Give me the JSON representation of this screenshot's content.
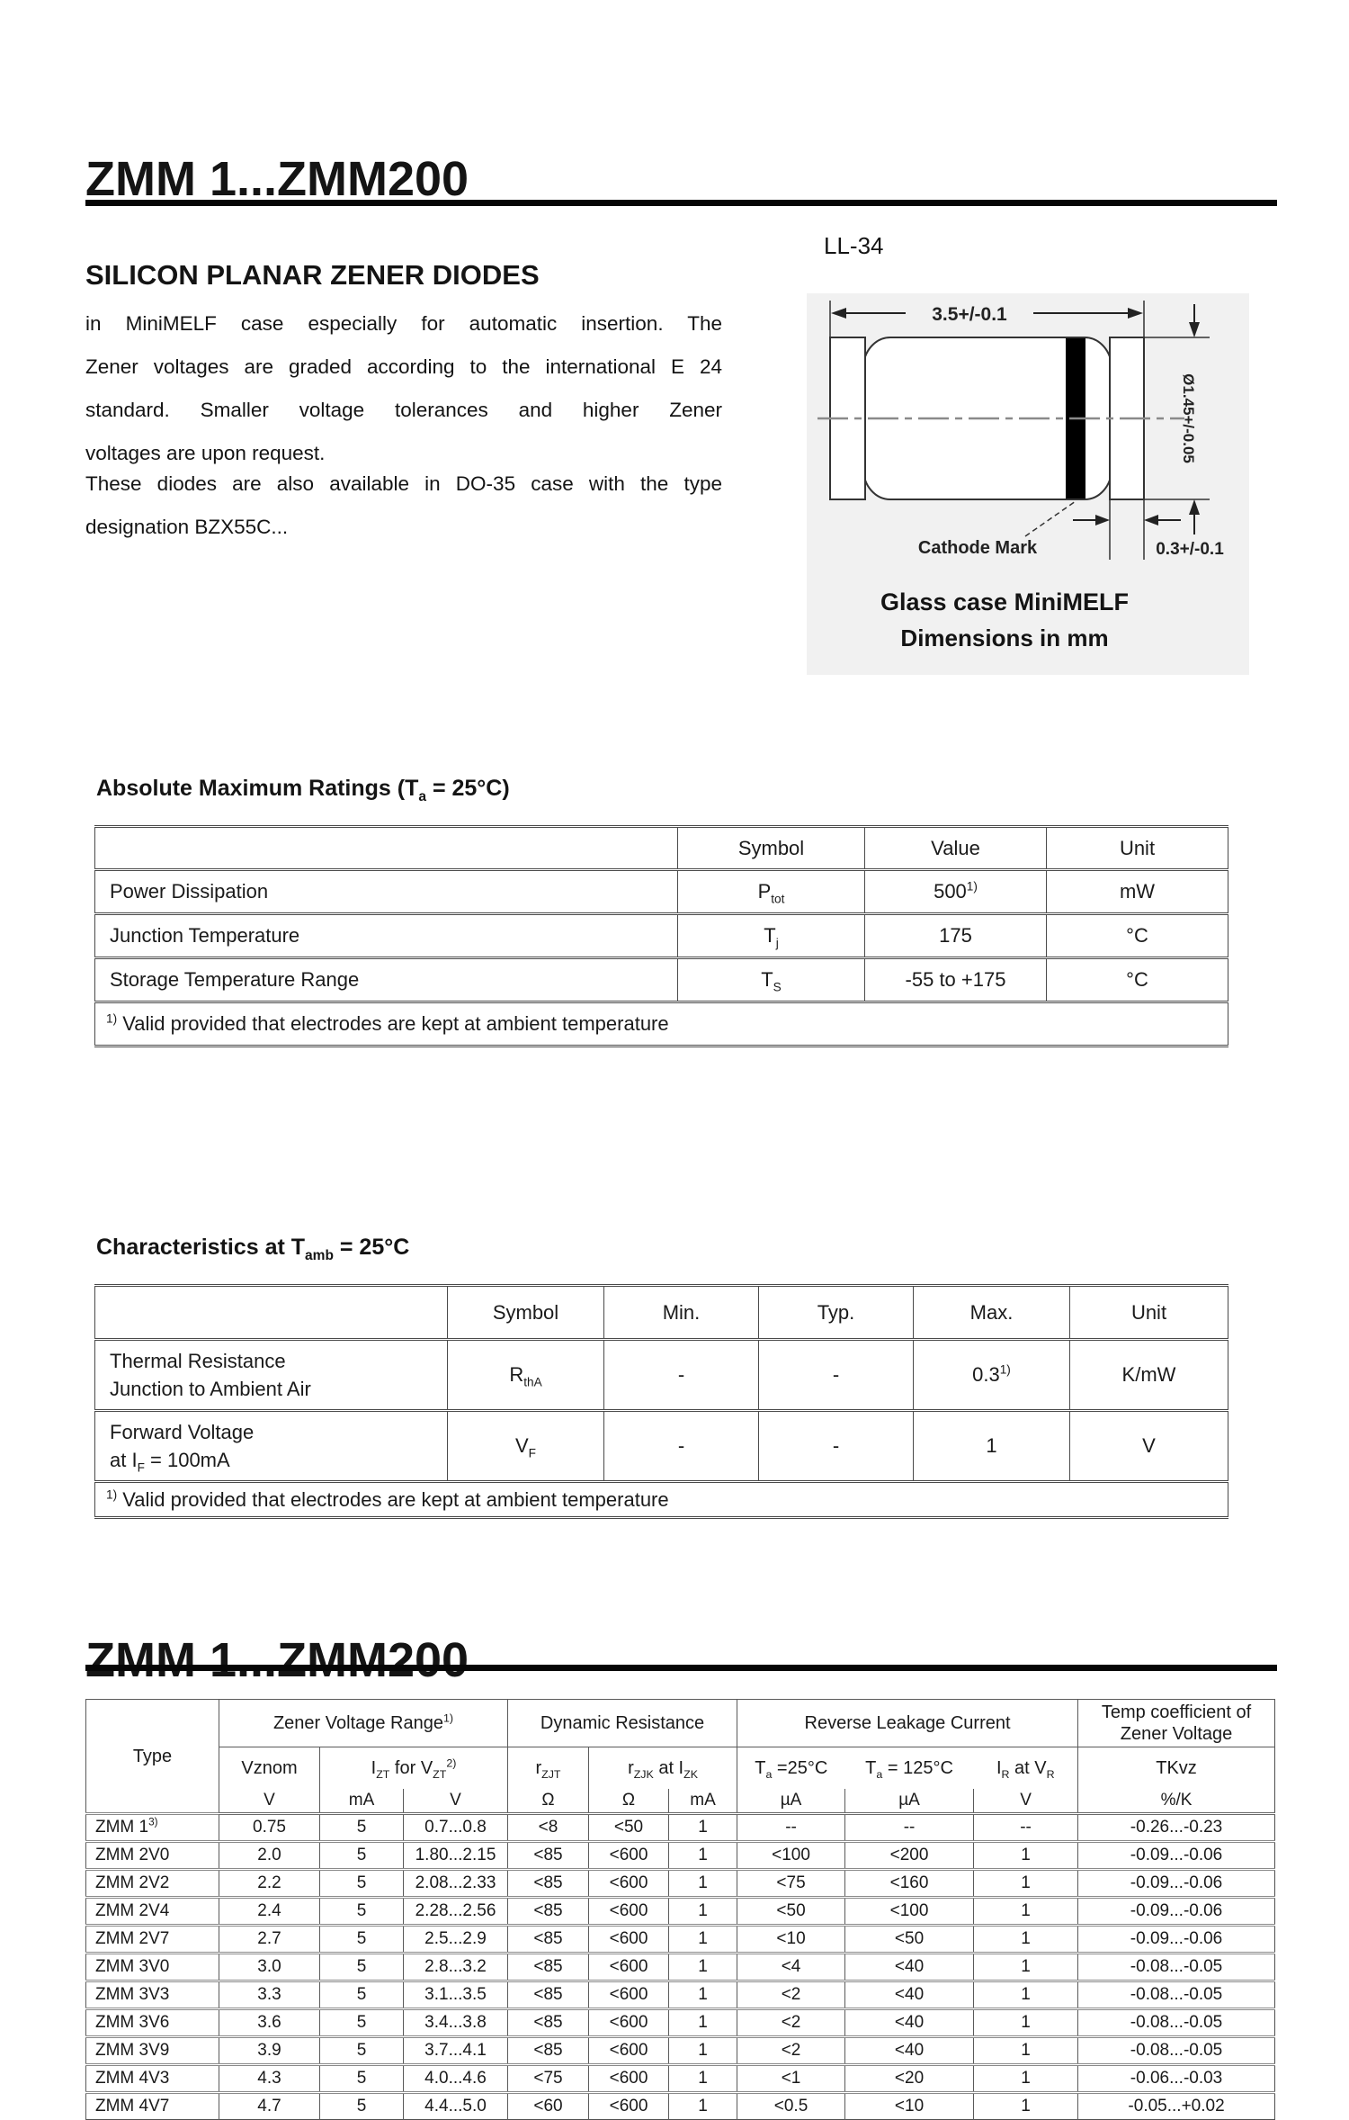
{
  "header": {
    "title": "ZMM 1...ZMM200",
    "subtitle": "SILICON PLANAR ZENER DIODES"
  },
  "intro": {
    "p1_lines": [
      "in MiniMELF case especially for automatic insertion. The",
      "Zener voltages are graded according to the international E 24",
      "standard. Smaller voltage tolerances and higher Zener",
      "voltages are upon request."
    ],
    "p2_lines": [
      "These diodes are also available in DO-35 case with the type",
      "designation BZX55C..."
    ]
  },
  "figure": {
    "package": "LL-34",
    "dim_length": "3.5+/-0.1",
    "dim_diameter": "Ø1.45+/-0.05",
    "dim_band": "0.3+/-0.1",
    "cathode_label": "Cathode Mark",
    "caption1": "Glass case MiniMELF",
    "caption2": "Dimensions in mm"
  },
  "abs_max": {
    "heading": [
      {
        "t": "Absolute Maximum Ratings (T"
      },
      {
        "t": "a",
        "s": "sub"
      },
      {
        "t": " = 25°C)"
      }
    ],
    "headers": [
      "Symbol",
      "Value",
      "Unit"
    ],
    "rows": [
      {
        "param": "Power Dissipation",
        "symbol": [
          {
            "t": "P"
          },
          {
            "t": "tot",
            "s": "sub"
          }
        ],
        "value": [
          {
            "t": "500"
          },
          {
            "t": "1)",
            "s": "sup"
          }
        ],
        "unit": "mW"
      },
      {
        "param": "Junction Temperature",
        "symbol": [
          {
            "t": "T"
          },
          {
            "t": "j",
            "s": "sub"
          }
        ],
        "value": [
          {
            "t": "175"
          }
        ],
        "unit": "°C"
      },
      {
        "param": "Storage Temperature Range",
        "symbol": [
          {
            "t": "T"
          },
          {
            "t": "S",
            "s": "sub"
          }
        ],
        "value": [
          {
            "t": "-55 to +175"
          }
        ],
        "unit": "°C"
      }
    ],
    "footnote": [
      {
        "t": "1)",
        "s": "sup"
      },
      {
        "t": " Valid provided that electrodes are kept at ambient temperature"
      }
    ]
  },
  "characteristics": {
    "heading": [
      {
        "t": "Characteristics at T"
      },
      {
        "t": "amb",
        "s": "sub"
      },
      {
        "t": " = 25°C"
      }
    ],
    "headers": [
      "Symbol",
      "Min.",
      "Typ.",
      "Max.",
      "Unit"
    ],
    "rows": [
      {
        "param1": "Thermal Resistance",
        "param2": [
          {
            "t": "Junction to Ambient Air"
          }
        ],
        "symbol": [
          {
            "t": "R"
          },
          {
            "t": "thA",
            "s": "sub"
          }
        ],
        "min": "-",
        "typ": "-",
        "max": [
          {
            "t": "0.3"
          },
          {
            "t": "1)",
            "s": "sup"
          }
        ],
        "unit": "K/mW"
      },
      {
        "param1": "Forward Voltage",
        "param2": [
          {
            "t": "at I"
          },
          {
            "t": "F",
            "s": "sub"
          },
          {
            "t": " = 100mA"
          }
        ],
        "symbol": [
          {
            "t": "V"
          },
          {
            "t": "F",
            "s": "sub"
          }
        ],
        "min": "-",
        "typ": "-",
        "max": [
          {
            "t": "1"
          }
        ],
        "unit": "V"
      }
    ],
    "footnote": [
      {
        "t": "1)",
        "s": "sup"
      },
      {
        "t": " Valid provided that electrodes are kept at ambient temperature"
      }
    ]
  },
  "type_section": {
    "title": "ZMM 1...ZMM200"
  },
  "type_table": {
    "col_type": "Type",
    "groups": {
      "g1": [
        {
          "t": "Zener Voltage Range"
        },
        {
          "t": "1)",
          "s": "sup"
        }
      ],
      "g2": "Dynamic Resistance",
      "g3": "Reverse Leakage Current",
      "g4": "Temp coefficient of Zener Voltage"
    },
    "sub": {
      "vznom": "Vznom",
      "izt": [
        {
          "t": "I"
        },
        {
          "t": "ZT",
          "s": "sub"
        },
        {
          "t": "  for  V"
        },
        {
          "t": "ZT",
          "s": "sub"
        },
        {
          "t": "2)",
          "s": "sup"
        }
      ],
      "rzjt": [
        {
          "t": "r"
        },
        {
          "t": "ZJT",
          "s": "sub"
        }
      ],
      "rzjk": [
        {
          "t": "r"
        },
        {
          "t": "ZJK",
          "s": "sub"
        },
        {
          "t": "  at  I"
        },
        {
          "t": "ZK",
          "s": "sub"
        }
      ],
      "ta25": [
        {
          "t": "T"
        },
        {
          "t": "a",
          "s": "sub"
        },
        {
          "t": " =25°C"
        }
      ],
      "ta125": [
        {
          "t": "T"
        },
        {
          "t": "a",
          "s": "sub"
        },
        {
          "t": " = 125°C"
        }
      ],
      "ir": [
        {
          "t": "I"
        },
        {
          "t": "R",
          "s": "sub"
        },
        {
          "t": " at V"
        },
        {
          "t": "R",
          "s": "sub"
        }
      ],
      "tkvz": "TKvz"
    },
    "units": [
      "V",
      "mA",
      "V",
      "Ω",
      "Ω",
      "mA",
      "µA",
      "µA",
      "V",
      "%/K"
    ],
    "rows": [
      [
        [
          {
            "t": "ZMM 1"
          },
          {
            "t": "3)",
            "s": "sup"
          }
        ],
        "0.75",
        "5",
        "0.7...0.8",
        "<8",
        "<50",
        "1",
        "--",
        "--",
        "--",
        "-0.26...-0.23"
      ],
      [
        "ZMM 2V0",
        "2.0",
        "5",
        "1.80...2.15",
        "<85",
        "<600",
        "1",
        "<100",
        "<200",
        "1",
        "-0.09...-0.06"
      ],
      [
        "ZMM 2V2",
        "2.2",
        "5",
        "2.08...2.33",
        "<85",
        "<600",
        "1",
        "<75",
        "<160",
        "1",
        "-0.09...-0.06"
      ],
      [
        "ZMM 2V4",
        "2.4",
        "5",
        "2.28...2.56",
        "<85",
        "<600",
        "1",
        "<50",
        "<100",
        "1",
        "-0.09...-0.06"
      ],
      [
        "ZMM 2V7",
        "2.7",
        "5",
        "2.5...2.9",
        "<85",
        "<600",
        "1",
        "<10",
        "<50",
        "1",
        "-0.09...-0.06"
      ],
      [
        "ZMM 3V0",
        "3.0",
        "5",
        "2.8...3.2",
        "<85",
        "<600",
        "1",
        "<4",
        "<40",
        "1",
        "-0.08...-0.05"
      ],
      [
        "ZMM 3V3",
        "3.3",
        "5",
        "3.1...3.5",
        "<85",
        "<600",
        "1",
        "<2",
        "<40",
        "1",
        "-0.08...-0.05"
      ],
      [
        "ZMM 3V6",
        "3.6",
        "5",
        "3.4...3.8",
        "<85",
        "<600",
        "1",
        "<2",
        "<40",
        "1",
        "-0.08...-0.05"
      ],
      [
        "ZMM 3V9",
        "3.9",
        "5",
        "3.7...4.1",
        "<85",
        "<600",
        "1",
        "<2",
        "<40",
        "1",
        "-0.08...-0.05"
      ],
      [
        "ZMM 4V3",
        "4.3",
        "5",
        "4.0...4.6",
        "<75",
        "<600",
        "1",
        "<1",
        "<20",
        "1",
        "-0.06...-0.03"
      ],
      [
        "ZMM 4V7",
        "4.7",
        "5",
        "4.4...5.0",
        "<60",
        "<600",
        "1",
        "<0.5",
        "<10",
        "1",
        "-0.05...+0.02"
      ]
    ]
  }
}
